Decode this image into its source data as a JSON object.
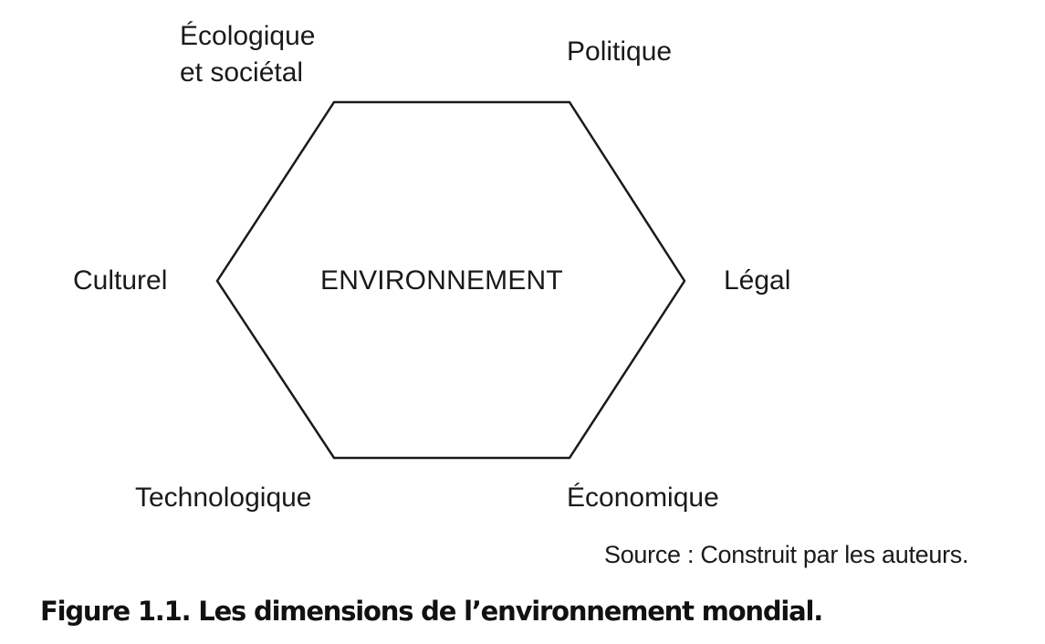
{
  "diagram": {
    "center": "ENVIRONNEMENT",
    "dimensions": {
      "ecological_line1": "Écologique",
      "ecological_line2": "et sociétal",
      "political": "Politique",
      "legal": "Légal",
      "economic": "Économique",
      "technological": "Technologique",
      "cultural": "Culturel"
    }
  },
  "source": "Source : Construit par les auteurs.",
  "caption": "Figure 1.1. Les dimensions de l’environnement mondial."
}
